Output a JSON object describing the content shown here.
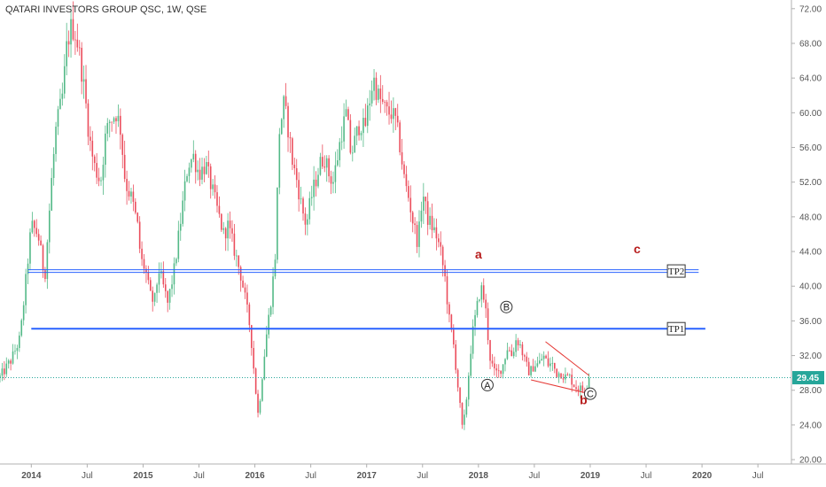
{
  "header": {
    "title": "QATARI INVESTORS GROUP QSC, 1W, QSE"
  },
  "chart_data": {
    "type": "candlestick",
    "y_ticks": [
      "72.00",
      "68.00",
      "64.00",
      "60.00",
      "56.00",
      "52.00",
      "48.00",
      "44.00",
      "40.00",
      "36.00",
      "32.00",
      "28.00",
      "24.00",
      "20.00"
    ],
    "y_tick_values": [
      72,
      68,
      64,
      60,
      56,
      52,
      48,
      44,
      40,
      36,
      32,
      28,
      24,
      20
    ],
    "ylim": [
      19.5,
      73.0
    ],
    "x_ticks": [
      {
        "label": "2014",
        "t": 0.0,
        "bold": true
      },
      {
        "label": "Jul",
        "t": 0.5,
        "bold": false
      },
      {
        "label": "2015",
        "t": 1.0,
        "bold": true
      },
      {
        "label": "Jul",
        "t": 1.5,
        "bold": false
      },
      {
        "label": "2016",
        "t": 2.0,
        "bold": true
      },
      {
        "label": "Jul",
        "t": 2.5,
        "bold": false
      },
      {
        "label": "2017",
        "t": 3.0,
        "bold": true
      },
      {
        "label": "Jul",
        "t": 3.5,
        "bold": false
      },
      {
        "label": "2018",
        "t": 4.0,
        "bold": true
      },
      {
        "label": "Jul",
        "t": 4.5,
        "bold": false
      },
      {
        "label": "2019",
        "t": 5.0,
        "bold": true
      },
      {
        "label": "Jul",
        "t": 5.5,
        "bold": false
      },
      {
        "label": "2020",
        "t": 6.0,
        "bold": true
      },
      {
        "label": "Jul",
        "t": 6.5,
        "bold": false
      }
    ],
    "xlim": [
      -0.28,
      6.8
    ],
    "last_price": 29.45,
    "last_price_label": "29.45",
    "colors": {
      "up": "#53b987",
      "down": "#eb4d5c",
      "hline": "#2962ff",
      "wedge": "#e53935",
      "wave_label": "#b71c1c",
      "price_line": "#26a69a"
    },
    "price_path": [
      [
        -0.28,
        29.5
      ],
      [
        -0.18,
        31.5
      ],
      [
        -0.1,
        34
      ],
      [
        0.0,
        47
      ],
      [
        0.06,
        46
      ],
      [
        0.12,
        41
      ],
      [
        0.18,
        52
      ],
      [
        0.22,
        58
      ],
      [
        0.28,
        62
      ],
      [
        0.32,
        68
      ],
      [
        0.36,
        70
      ],
      [
        0.4,
        69
      ],
      [
        0.44,
        66
      ],
      [
        0.48,
        62
      ],
      [
        0.52,
        57
      ],
      [
        0.56,
        54
      ],
      [
        0.62,
        52
      ],
      [
        0.66,
        57
      ],
      [
        0.7,
        59
      ],
      [
        0.76,
        60
      ],
      [
        0.8,
        58
      ],
      [
        0.84,
        52
      ],
      [
        0.9,
        50
      ],
      [
        0.95,
        47
      ],
      [
        0.98,
        43
      ],
      [
        1.02,
        42
      ],
      [
        1.06,
        39
      ],
      [
        1.1,
        38
      ],
      [
        1.14,
        42
      ],
      [
        1.18,
        40
      ],
      [
        1.22,
        38
      ],
      [
        1.28,
        42
      ],
      [
        1.32,
        46
      ],
      [
        1.36,
        50
      ],
      [
        1.4,
        54
      ],
      [
        1.45,
        55
      ],
      [
        1.5,
        53
      ],
      [
        1.56,
        54
      ],
      [
        1.62,
        51
      ],
      [
        1.68,
        48
      ],
      [
        1.72,
        46
      ],
      [
        1.76,
        47
      ],
      [
        1.8,
        45
      ],
      [
        1.84,
        43
      ],
      [
        1.88,
        41
      ],
      [
        1.92,
        38
      ],
      [
        1.96,
        35
      ],
      [
        2.0,
        29
      ],
      [
        2.03,
        25
      ],
      [
        2.06,
        29
      ],
      [
        2.1,
        34
      ],
      [
        2.14,
        38
      ],
      [
        2.18,
        43
      ],
      [
        2.22,
        58
      ],
      [
        2.26,
        61
      ],
      [
        2.3,
        58
      ],
      [
        2.34,
        54
      ],
      [
        2.38,
        52
      ],
      [
        2.42,
        49
      ],
      [
        2.46,
        47
      ],
      [
        2.5,
        50
      ],
      [
        2.54,
        52
      ],
      [
        2.58,
        54
      ],
      [
        2.62,
        55
      ],
      [
        2.66,
        53
      ],
      [
        2.7,
        52
      ],
      [
        2.74,
        55
      ],
      [
        2.78,
        58
      ],
      [
        2.82,
        60
      ],
      [
        2.86,
        55
      ],
      [
        2.9,
        57
      ],
      [
        2.94,
        59
      ],
      [
        2.98,
        58
      ],
      [
        3.02,
        61
      ],
      [
        3.06,
        64
      ],
      [
        3.1,
        62
      ],
      [
        3.14,
        61
      ],
      [
        3.18,
        60
      ],
      [
        3.22,
        60
      ],
      [
        3.26,
        59
      ],
      [
        3.3,
        56
      ],
      [
        3.34,
        52
      ],
      [
        3.38,
        50
      ],
      [
        3.42,
        47
      ],
      [
        3.46,
        45
      ],
      [
        3.5,
        51
      ],
      [
        3.54,
        48
      ],
      [
        3.58,
        47
      ],
      [
        3.62,
        46
      ],
      [
        3.66,
        44
      ],
      [
        3.7,
        41
      ],
      [
        3.74,
        36
      ],
      [
        3.78,
        33
      ],
      [
        3.82,
        28
      ],
      [
        3.86,
        23
      ],
      [
        3.9,
        28
      ],
      [
        3.94,
        34
      ],
      [
        3.98,
        37
      ],
      [
        4.02,
        40
      ],
      [
        4.06,
        38
      ],
      [
        4.1,
        32
      ],
      [
        4.14,
        30
      ],
      [
        4.18,
        30
      ],
      [
        4.22,
        31
      ],
      [
        4.26,
        33
      ],
      [
        4.3,
        32
      ],
      [
        4.34,
        34
      ],
      [
        4.38,
        33
      ],
      [
        4.42,
        31
      ],
      [
        4.46,
        30
      ],
      [
        4.5,
        31
      ],
      [
        4.54,
        31
      ],
      [
        4.58,
        32
      ],
      [
        4.62,
        31
      ],
      [
        4.66,
        31
      ],
      [
        4.7,
        30
      ],
      [
        4.74,
        30
      ],
      [
        4.78,
        29.5
      ],
      [
        4.82,
        29.5
      ],
      [
        4.86,
        28.5
      ],
      [
        4.9,
        28.2
      ],
      [
        4.94,
        28.0
      ],
      [
        4.97,
        28.5
      ],
      [
        5.0,
        29.45
      ]
    ],
    "horizontal_lines": [
      {
        "name": "TP2",
        "y": 41.75,
        "t_start": -0.03,
        "t_end": 5.97,
        "double": true
      },
      {
        "name": "TP1",
        "y": 35.1,
        "t_start": 0.0,
        "t_end": 6.03,
        "double": false
      }
    ],
    "boxed_labels": [
      {
        "text": "TP2",
        "t": 5.77,
        "y": 41.75
      },
      {
        "text": "TP1",
        "t": 5.77,
        "y": 35.1
      }
    ],
    "wave_labels": [
      {
        "text": "a",
        "t": 4.0,
        "y": 43.2
      },
      {
        "text": "c",
        "t": 5.42,
        "y": 43.8
      },
      {
        "text": "b",
        "t": 4.94,
        "y": 26.4
      }
    ],
    "circled_labels": [
      {
        "text": "A",
        "t": 4.08,
        "y": 28.6
      },
      {
        "text": "B",
        "t": 4.25,
        "y": 37.6
      },
      {
        "text": "C",
        "t": 5.0,
        "y": 27.6
      }
    ],
    "wedge": {
      "upper": [
        [
          4.6,
          33.6
        ],
        [
          4.99,
          29.7
        ]
      ],
      "lower": [
        [
          4.47,
          29.2
        ],
        [
          4.99,
          27.6
        ]
      ]
    }
  }
}
